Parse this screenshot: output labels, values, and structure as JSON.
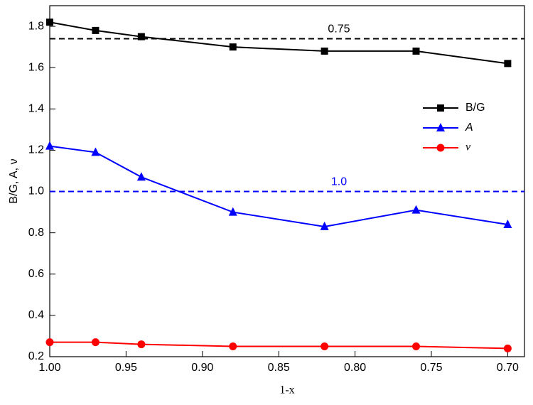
{
  "chart_data": {
    "type": "line",
    "xlabel": "1-x",
    "ylabel": "B/G, A, ν",
    "x": [
      1.0,
      0.97,
      0.94,
      0.88,
      0.82,
      0.76,
      0.7
    ],
    "series": [
      {
        "name": "B/G",
        "color": "#000000",
        "marker": "square",
        "values": [
          1.82,
          1.78,
          1.75,
          1.7,
          1.68,
          1.68,
          1.62
        ]
      },
      {
        "name": "A",
        "color": "#0000ff",
        "marker": "triangle",
        "values": [
          1.22,
          1.19,
          1.07,
          0.9,
          0.83,
          0.91,
          0.84
        ]
      },
      {
        "name": "ν",
        "color": "#ff0000",
        "marker": "circle",
        "values": [
          0.27,
          0.27,
          0.26,
          0.25,
          0.25,
          0.25,
          0.24
        ]
      }
    ],
    "reference_lines": [
      {
        "value": 1.74,
        "label": "0.75",
        "color": "#000000"
      },
      {
        "value": 1.0,
        "label": "1.0",
        "color": "#0000ff"
      }
    ],
    "xlim": [
      1.0,
      0.689
    ],
    "ylim": [
      0.2,
      1.9
    ],
    "xticks": [
      {
        "value": 1.0,
        "label": "1.00"
      },
      0.95,
      {
        "value": 0.9,
        "label": "0.90"
      },
      0.85,
      {
        "value": 0.8,
        "label": "0.80"
      },
      0.75,
      {
        "value": 0.7,
        "label": "0.70"
      }
    ],
    "yticks": [
      0.2,
      0.4,
      0.6,
      0.8,
      {
        "value": 1.0,
        "label": "1.0"
      },
      1.2,
      1.4,
      1.6,
      1.8
    ],
    "legend": "upper right"
  }
}
